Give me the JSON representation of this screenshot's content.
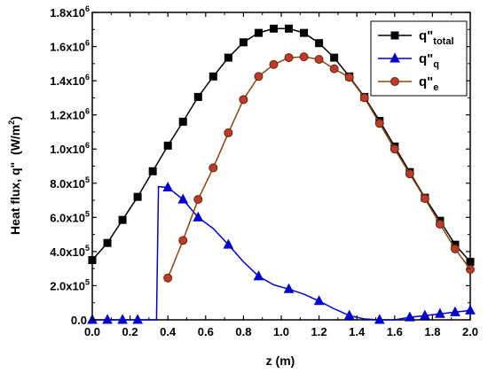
{
  "chart_data": {
    "type": "line",
    "xlabel": "z (m)",
    "ylabel_main": "Heat flux, q\"",
    "ylabel_unit": "(W/m",
    "ylabel_unit_sup": "2",
    "ylabel_unit_close": ")",
    "xlim": [
      0.0,
      2.0
    ],
    "ylim": [
      0,
      1800000
    ],
    "x_ticks": [
      "0.0",
      "0.2",
      "0.4",
      "0.6",
      "0.8",
      "1.0",
      "1.2",
      "1.4",
      "1.6",
      "1.8",
      "2.0"
    ],
    "y_ticks": [
      {
        "mant": "0.0",
        "exp": ""
      },
      {
        "mant": "2.0x10",
        "exp": "5"
      },
      {
        "mant": "4.0x10",
        "exp": "5"
      },
      {
        "mant": "6.0x10",
        "exp": "5"
      },
      {
        "mant": "8.0x10",
        "exp": "5"
      },
      {
        "mant": "1.0x10",
        "exp": "6"
      },
      {
        "mant": "1.2x10",
        "exp": "6"
      },
      {
        "mant": "1.4x10",
        "exp": "6"
      },
      {
        "mant": "1.6x10",
        "exp": "6"
      },
      {
        "mant": "1.8x10",
        "exp": "6"
      }
    ],
    "series": [
      {
        "name": "q\"",
        "name_sub": "total",
        "color": "#000000",
        "marker_fill": "#000000",
        "marker": "square",
        "x": [
          0.0,
          0.08,
          0.16,
          0.24,
          0.32,
          0.4,
          0.48,
          0.56,
          0.64,
          0.72,
          0.8,
          0.88,
          0.96,
          1.04,
          1.12,
          1.2,
          1.28,
          1.36,
          1.44,
          1.52,
          1.6,
          1.68,
          1.76,
          1.84,
          1.92,
          2.0
        ],
        "y": [
          350000,
          450000,
          585000,
          720000,
          870000,
          1020000,
          1160000,
          1305000,
          1425000,
          1535000,
          1625000,
          1680000,
          1705000,
          1705000,
          1680000,
          1620000,
          1535000,
          1425000,
          1305000,
          1165000,
          1015000,
          865000,
          715000,
          580000,
          440000,
          340000
        ]
      },
      {
        "name": "q\"",
        "name_sub": "q",
        "color": "#0000cc",
        "marker_fill": "#0000cc",
        "marker": "triangle",
        "x": [
          0.0,
          0.08,
          0.16,
          0.24,
          0.32,
          0.34,
          0.35,
          0.4,
          0.48,
          0.56,
          0.64,
          0.72,
          0.8,
          0.88,
          0.96,
          1.04,
          1.12,
          1.2,
          1.28,
          1.36,
          1.44,
          1.52,
          1.6,
          1.68,
          1.76,
          1.84,
          1.92,
          2.0
        ],
        "y": [
          0,
          0,
          0,
          0,
          0,
          0,
          780000,
          775000,
          705000,
          600000,
          535000,
          440000,
          340000,
          255000,
          205000,
          180000,
          150000,
          110000,
          65000,
          25000,
          5000,
          0,
          0,
          15000,
          25000,
          35000,
          45000,
          55000
        ]
      },
      {
        "name": "q\"",
        "name_sub": "e",
        "color": "#8b4513",
        "marker_fill": "#c0392b",
        "marker": "circle",
        "x": [
          0.4,
          0.48,
          0.56,
          0.64,
          0.72,
          0.8,
          0.88,
          0.96,
          1.04,
          1.12,
          1.2,
          1.28,
          1.36,
          1.44,
          1.52,
          1.6,
          1.68,
          1.76,
          1.84,
          1.92,
          2.0
        ],
        "y": [
          245000,
          465000,
          705000,
          890000,
          1095000,
          1290000,
          1425000,
          1495000,
          1535000,
          1540000,
          1525000,
          1470000,
          1420000,
          1300000,
          1150000,
          1000000,
          855000,
          710000,
          560000,
          415000,
          295000
        ]
      }
    ],
    "markers_at": {
      "total": "all",
      "q": [
        0,
        1,
        2,
        3,
        7,
        8,
        9,
        11,
        13,
        15,
        17,
        19,
        21,
        23,
        24,
        25,
        26,
        27
      ],
      "e": "all"
    },
    "legend_position": "top-right",
    "grid": false
  }
}
